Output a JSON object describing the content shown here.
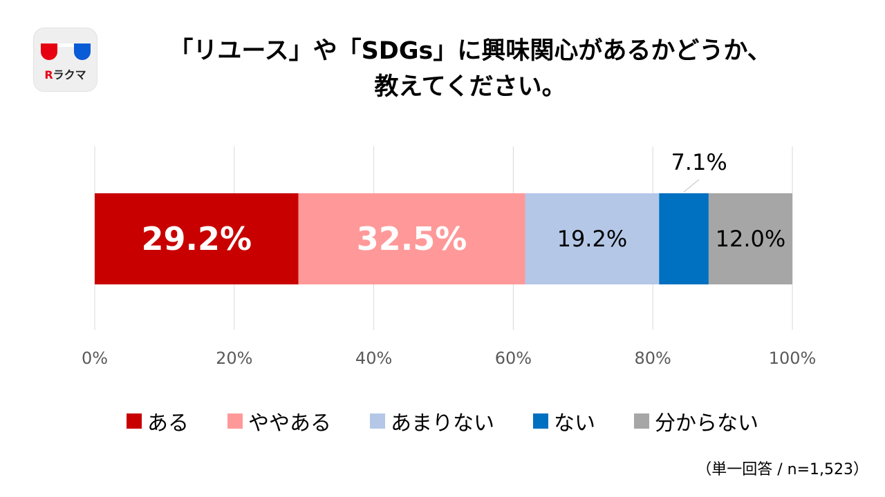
{
  "logo": {
    "r": "R",
    "text": "ラクマ"
  },
  "title_lines": [
    "「リユース」や「SDGs」に興味関心があるかどうか、",
    "教えてください。"
  ],
  "chart_data": {
    "type": "bar",
    "orientation": "horizontal-stacked-100",
    "categories": [
      ""
    ],
    "xlim": [
      0,
      100
    ],
    "x_ticks": [
      0,
      20,
      40,
      60,
      80,
      100
    ],
    "x_tick_labels": [
      "0%",
      "20%",
      "40%",
      "60%",
      "80%",
      "100%"
    ],
    "grid": true,
    "legend_position": "bottom",
    "series": [
      {
        "name": "ある",
        "value": 29.2,
        "label": "29.2%",
        "color": "#c80000",
        "label_color": "#ffffff",
        "label_bold": true,
        "label_large": true
      },
      {
        "name": "ややある",
        "value": 32.5,
        "label": "32.5%",
        "color": "#ff9999",
        "label_color": "#ffffff",
        "label_bold": true,
        "label_large": true
      },
      {
        "name": "あまりない",
        "value": 19.2,
        "label": "19.2%",
        "color": "#b4c7e7",
        "label_color": "#000000",
        "label_bold": false,
        "label_large": false
      },
      {
        "name": "ない",
        "value": 7.1,
        "label": "7.1%",
        "color": "#0070c0",
        "label_color": "#000000",
        "label_bold": false,
        "label_large": false,
        "label_outside": true
      },
      {
        "name": "分からない",
        "value": 12.0,
        "label": "12.0%",
        "color": "#a6a6a6",
        "label_color": "#000000",
        "label_bold": false,
        "label_large": false
      }
    ]
  },
  "note": "（単一回答 / n=1,523）"
}
